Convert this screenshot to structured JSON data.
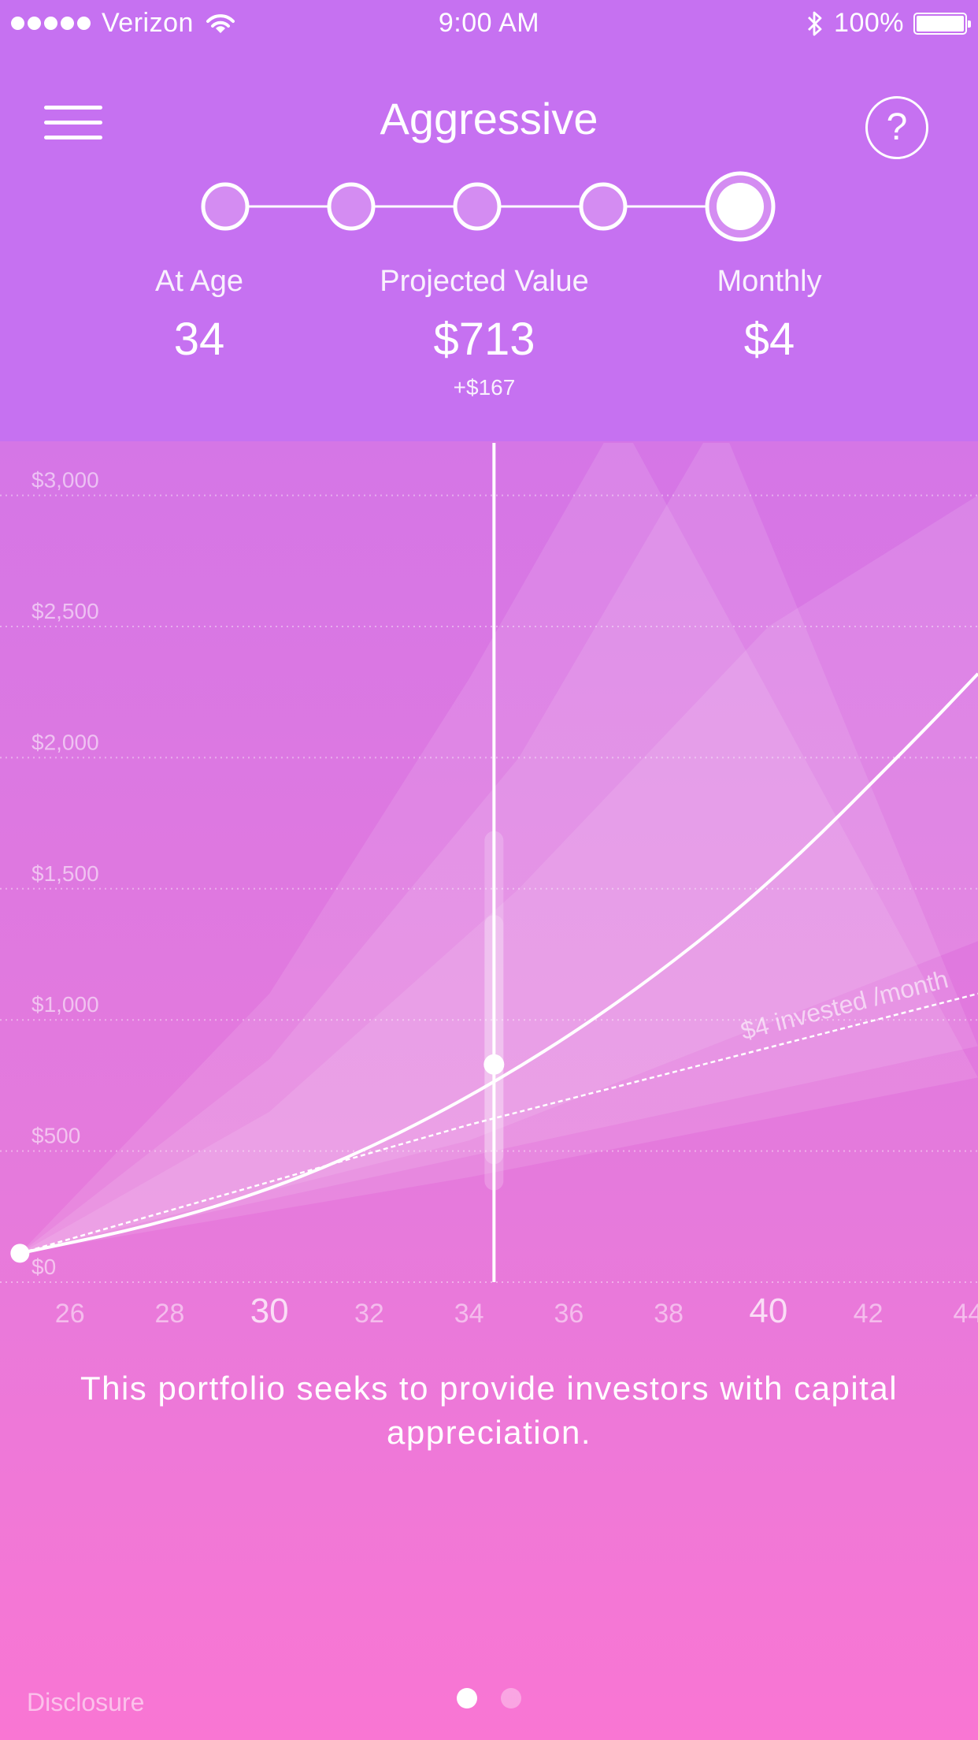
{
  "status_bar": {
    "carrier": "Verizon",
    "time": "9:00 AM",
    "battery": "100%",
    "signal_icon": "signal-dots-icon",
    "wifi_icon": "wifi-icon",
    "bluetooth_icon": "bluetooth-icon",
    "battery_icon": "battery-icon"
  },
  "header": {
    "title": "Aggressive",
    "menu_icon": "hamburger-menu-icon",
    "help_label": "?"
  },
  "risk_levels": {
    "count": 5,
    "selected_index": 4
  },
  "stats": {
    "age_label": "At Age",
    "age_value": "34",
    "projected_label": "Projected Value",
    "projected_value": "$713",
    "projected_delta": "+$167",
    "monthly_label": "Monthly",
    "monthly_value": "$4"
  },
  "chart_data": {
    "type": "line",
    "y_ticks": [
      "$3,000",
      "$2,500",
      "$2,000",
      "$1,500",
      "$1,000",
      "$500",
      "$0"
    ],
    "y_tick_values": [
      3000,
      2500,
      2000,
      1500,
      1000,
      500,
      0
    ],
    "x_ticks": [
      "26",
      "28",
      "30",
      "32",
      "34",
      "36",
      "38",
      "40",
      "42",
      "44"
    ],
    "x_tick_values": [
      26,
      28,
      30,
      32,
      34,
      36,
      38,
      40,
      42,
      44
    ],
    "major_x_ticks": [
      30,
      40
    ],
    "xlim": [
      24.6,
      44.2
    ],
    "ylim": [
      0,
      3200
    ],
    "selected_age": 34.5,
    "invested_label": "$4 invested /month",
    "series": [
      {
        "values": [
          [
            25,
            110
          ],
          [
            28,
            230
          ],
          [
            31,
            420
          ],
          [
            34,
            700
          ],
          [
            37,
            1060
          ],
          [
            40,
            1510
          ],
          [
            43,
            2080
          ],
          [
            44.2,
            2320
          ]
        ]
      },
      {
        "values": [
          [
            25,
            110
          ],
          [
            34,
            600
          ],
          [
            44.2,
            1100
          ]
        ]
      }
    ],
    "bands": [
      {
        "upper": [
          [
            25,
            110
          ],
          [
            30,
            1100
          ],
          [
            34,
            2300
          ],
          [
            37,
            3300
          ]
        ],
        "lower": [
          [
            25,
            110
          ],
          [
            34,
            400
          ],
          [
            44.2,
            780
          ]
        ]
      },
      {
        "upper": [
          [
            25,
            110
          ],
          [
            30,
            850
          ],
          [
            35,
            2000
          ],
          [
            39,
            3300
          ]
        ],
        "lower": [
          [
            25,
            110
          ],
          [
            34,
            480
          ],
          [
            44.2,
            900
          ]
        ]
      },
      {
        "upper": [
          [
            25,
            110
          ],
          [
            30,
            650
          ],
          [
            35,
            1500
          ],
          [
            40,
            2500
          ],
          [
            44.2,
            3000
          ]
        ],
        "lower": [
          [
            25,
            110
          ],
          [
            34,
            540
          ],
          [
            44.2,
            1300
          ]
        ]
      }
    ]
  },
  "description": "This portfolio seeks to provide investors with capital appreciation.",
  "footer": {
    "disclosure": "Disclosure",
    "page_count": 2,
    "active_page": 0
  }
}
